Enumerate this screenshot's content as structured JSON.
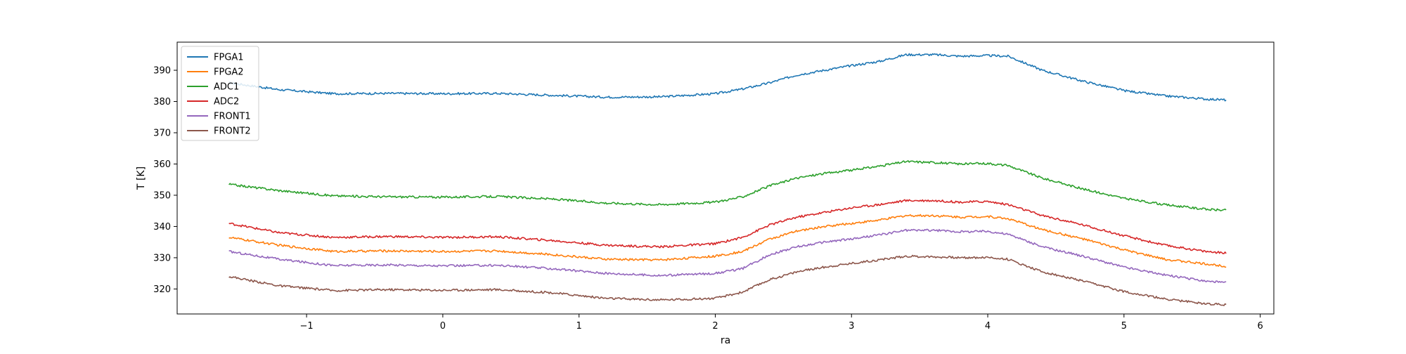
{
  "chart_data": {
    "type": "line",
    "title": "",
    "xlabel": "ra",
    "ylabel": "T [K]",
    "xlim": [
      -1.95,
      6.1
    ],
    "ylim": [
      312,
      399
    ],
    "xticks": [
      -1,
      0,
      1,
      2,
      3,
      4,
      5,
      6
    ],
    "xtick_labels": [
      "−1",
      "0",
      "1",
      "2",
      "3",
      "4",
      "5",
      "6"
    ],
    "yticks": [
      320,
      330,
      340,
      350,
      360,
      370,
      380,
      390
    ],
    "ytick_labels": [
      "320",
      "330",
      "340",
      "350",
      "360",
      "370",
      "380",
      "390"
    ],
    "grid": false,
    "legend": "top-left",
    "x": [
      -1.57,
      -1.2,
      -0.8,
      -0.4,
      0.0,
      0.4,
      0.8,
      1.2,
      1.6,
      2.0,
      2.2,
      2.4,
      2.6,
      2.8,
      3.0,
      3.2,
      3.4,
      3.6,
      3.8,
      4.0,
      4.15,
      4.4,
      4.7,
      5.0,
      5.3,
      5.6,
      5.75
    ],
    "series": [
      {
        "name": "FPGA1",
        "color": "#1f77b4",
        "values": [
          386.0,
          383.8,
          382.5,
          382.6,
          382.5,
          382.6,
          382.0,
          381.4,
          381.5,
          382.5,
          384.0,
          386.0,
          388.5,
          390.0,
          391.5,
          392.8,
          395.0,
          395.0,
          394.5,
          394.7,
          394.5,
          390.0,
          386.5,
          383.5,
          381.8,
          380.8,
          380.5
        ]
      },
      {
        "name": "FPGA2",
        "color": "#ff7f0e",
        "values": [
          336.5,
          334.0,
          332.0,
          332.2,
          332.0,
          332.2,
          331.0,
          329.5,
          329.3,
          330.5,
          332.0,
          336.0,
          338.5,
          340.0,
          341.0,
          342.0,
          343.5,
          343.5,
          343.0,
          343.2,
          342.5,
          339.0,
          336.0,
          332.5,
          329.5,
          328.0,
          327.3
        ]
      },
      {
        "name": "ADC1",
        "color": "#2ca02c",
        "values": [
          353.5,
          351.5,
          349.8,
          349.5,
          349.4,
          349.6,
          348.8,
          347.5,
          347.0,
          347.8,
          349.5,
          353.0,
          355.5,
          357.0,
          358.0,
          359.3,
          360.8,
          360.5,
          360.0,
          360.2,
          359.5,
          355.5,
          352.0,
          349.0,
          347.0,
          345.5,
          345.2
        ]
      },
      {
        "name": "ADC2",
        "color": "#d62728",
        "values": [
          341.0,
          338.0,
          336.5,
          336.8,
          336.5,
          336.7,
          335.5,
          334.0,
          333.5,
          334.5,
          336.5,
          340.5,
          343.0,
          344.5,
          346.0,
          347.0,
          348.3,
          348.3,
          347.8,
          348.0,
          347.0,
          343.5,
          340.5,
          337.0,
          334.0,
          332.0,
          331.5
        ]
      },
      {
        "name": "FRONT1",
        "color": "#9467bd",
        "values": [
          332.0,
          329.5,
          327.5,
          327.7,
          327.4,
          327.6,
          326.5,
          325.0,
          324.3,
          325.0,
          326.5,
          331.0,
          333.5,
          335.0,
          336.0,
          337.3,
          338.8,
          338.8,
          338.3,
          338.5,
          337.5,
          333.5,
          330.5,
          327.0,
          324.5,
          322.5,
          322.0
        ]
      },
      {
        "name": "FRONT2",
        "color": "#8c564b",
        "values": [
          324.0,
          321.0,
          319.5,
          319.8,
          319.6,
          319.8,
          318.8,
          317.0,
          316.5,
          317.0,
          319.0,
          323.0,
          325.5,
          327.0,
          328.2,
          329.3,
          330.5,
          330.3,
          330.0,
          330.1,
          329.5,
          325.5,
          322.5,
          319.2,
          316.8,
          315.3,
          315.0
        ]
      }
    ]
  }
}
